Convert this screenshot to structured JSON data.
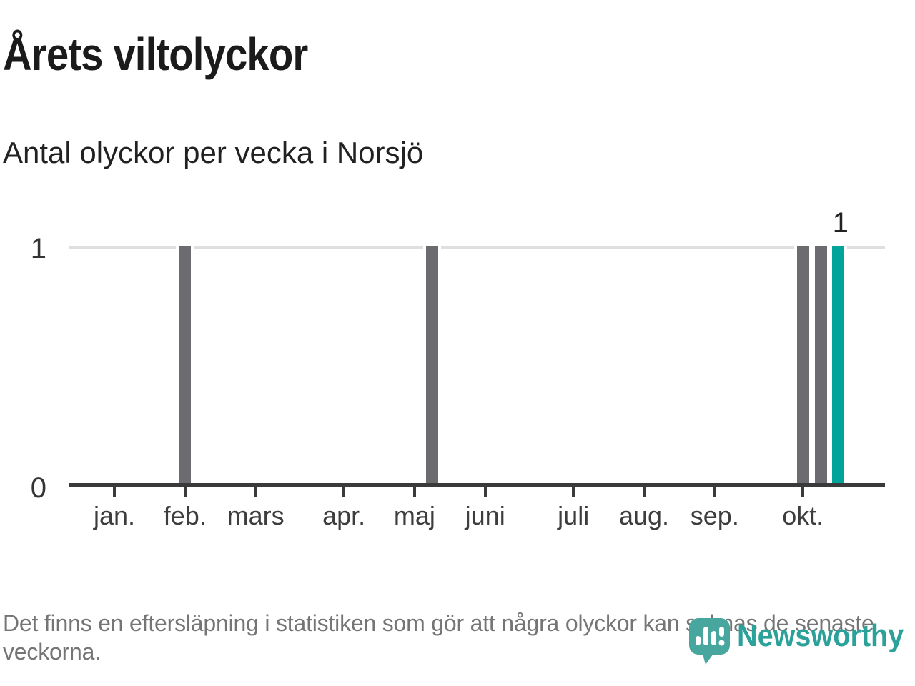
{
  "header": {
    "title": "Årets viltolyckor",
    "subtitle": "Antal olyckor per vecka i Norsjö"
  },
  "chart_data": {
    "type": "bar",
    "title": "Årets viltolyckor",
    "subtitle": "Antal olyckor per vecka i Norsjö",
    "xlabel": "",
    "ylabel": "Antal olyckor per vecka",
    "ylim": [
      0,
      1
    ],
    "yticks": [
      0,
      1
    ],
    "grid": "single light horizontal gridline at y=1",
    "legend": "none",
    "num_weeks": 44,
    "month_ticks": [
      {
        "label": "jan.",
        "week": 1
      },
      {
        "label": "feb.",
        "week": 5
      },
      {
        "label": "mars",
        "week": 9
      },
      {
        "label": "apr.",
        "week": 14
      },
      {
        "label": "maj",
        "week": 18
      },
      {
        "label": "juni",
        "week": 22
      },
      {
        "label": "juli",
        "week": 27
      },
      {
        "label": "aug.",
        "week": 31
      },
      {
        "label": "sep.",
        "week": 35
      },
      {
        "label": "okt.",
        "week": 40
      }
    ],
    "values": [
      0,
      0,
      0,
      0,
      1,
      0,
      0,
      0,
      0,
      0,
      0,
      0,
      0,
      0,
      0,
      0,
      0,
      0,
      1,
      0,
      0,
      0,
      0,
      0,
      0,
      0,
      0,
      0,
      0,
      0,
      0,
      0,
      0,
      0,
      0,
      0,
      0,
      0,
      0,
      1,
      1,
      1,
      0,
      0
    ],
    "accident_weeks": [
      5,
      19,
      40,
      41,
      42
    ],
    "highlight_week": 42,
    "highlight_value_label": "1",
    "colors": {
      "bar": "#6b6b70",
      "highlight_bar": "#00a49b",
      "gridline": "#dfdfdf",
      "axis": "#3a3a3a"
    }
  },
  "footer": {
    "note": "Det finns en eftersläpning i statistiken som gör att några olyckor kan saknas de senaste veckorna."
  },
  "logo": {
    "brand": "Newsworthy",
    "icon": "speech-bubble-bar-chart-icon",
    "brand_color": "#2ba199",
    "icon_color": "#47a79f"
  }
}
